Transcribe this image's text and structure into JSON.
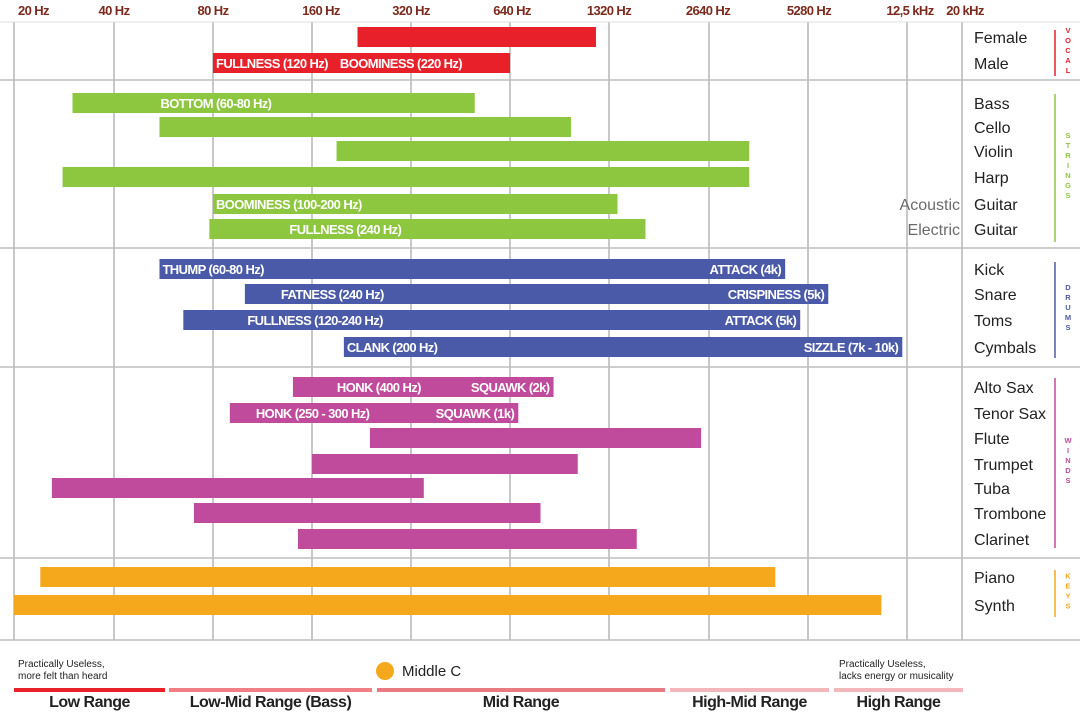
{
  "chart_data": {
    "type": "range-bar",
    "x_scale": "log",
    "x_ticks": [
      "20 Hz",
      "40 Hz",
      "80 Hz",
      "160 Hz",
      "320 Hz",
      "640 Hz",
      "1320 Hz",
      "2640 Hz",
      "5280 Hz",
      "12,5 kHz",
      "20 kHz"
    ],
    "x_tick_values_hz": [
      20,
      40,
      80,
      160,
      320,
      640,
      1320,
      2640,
      5280,
      12500,
      20000
    ],
    "groups": [
      {
        "name": "VOCAL",
        "color": "#e8202a",
        "instruments": [
          {
            "label": "Female",
            "low_hz": 220,
            "high_hz": 1200,
            "annotations": []
          },
          {
            "label": "Male",
            "low_hz": 80,
            "high_hz": 640,
            "annotations": [
              "FULLNESS (120 Hz)",
              "BOOMINESS (220 Hz)"
            ]
          }
        ]
      },
      {
        "name": "STRINGS",
        "color": "#8dc63f",
        "instruments": [
          {
            "label": "Bass",
            "low_hz": 30,
            "high_hz": 500,
            "annotations": [
              "BOTTOM (60-80 Hz)"
            ]
          },
          {
            "label": "Cello",
            "low_hz": 55,
            "high_hz": 1000,
            "annotations": []
          },
          {
            "label": "Violin",
            "low_hz": 190,
            "high_hz": 3500,
            "annotations": []
          },
          {
            "label": "Harp",
            "low_hz": 28,
            "high_hz": 3500,
            "annotations": []
          },
          {
            "label": "Guitar",
            "qualifier": "Acoustic",
            "low_hz": 80,
            "high_hz": 1400,
            "annotations": [
              "BOOMINESS (100-200 Hz)"
            ]
          },
          {
            "label": "Guitar",
            "qualifier": "Electric",
            "low_hz": 78,
            "high_hz": 1700,
            "annotations": [
              "FULLNESS (240 Hz)"
            ]
          }
        ]
      },
      {
        "name": "DRUMS",
        "color": "#4a5aa8",
        "instruments": [
          {
            "label": "Kick",
            "low_hz": 55,
            "high_hz": 4500,
            "annotations": [
              "THUMP (60-80 Hz)",
              "ATTACK (4k)"
            ]
          },
          {
            "label": "Snare",
            "low_hz": 100,
            "high_hz": 6300,
            "annotations": [
              "FATNESS (240 Hz)",
              "CRISPINESS (5k)"
            ]
          },
          {
            "label": "Toms",
            "low_hz": 65,
            "high_hz": 5000,
            "annotations": [
              "FULLNESS (120-240 Hz)",
              "ATTACK (5k)"
            ]
          },
          {
            "label": "Cymbals",
            "low_hz": 200,
            "high_hz": 12000,
            "annotations": [
              "CLANK (200 Hz)",
              "SIZZLE (7k - 10k)"
            ]
          }
        ]
      },
      {
        "name": "WINDS",
        "color": "#c04a9b",
        "instruments": [
          {
            "label": "Alto Sax",
            "low_hz": 140,
            "high_hz": 880,
            "annotations": [
              "HONK (400 Hz)",
              "SQUAWK (2k)"
            ]
          },
          {
            "label": "Tenor Sax",
            "low_hz": 90,
            "high_hz": 680,
            "annotations": [
              "HONK (250 - 300 Hz)",
              "SQUAWK (1k)"
            ]
          },
          {
            "label": "Flute",
            "low_hz": 240,
            "high_hz": 2500,
            "annotations": []
          },
          {
            "label": "Trumpet",
            "low_hz": 160,
            "high_hz": 1050,
            "annotations": []
          },
          {
            "label": "Tuba",
            "low_hz": 26,
            "high_hz": 350,
            "annotations": []
          },
          {
            "label": "Trombone",
            "low_hz": 70,
            "high_hz": 800,
            "annotations": []
          },
          {
            "label": "Clarinet",
            "low_hz": 145,
            "high_hz": 1600,
            "annotations": []
          }
        ]
      },
      {
        "name": "KEYS",
        "color": "#f6a81c",
        "instruments": [
          {
            "label": "Piano",
            "low_hz": 24,
            "high_hz": 4200,
            "annotations": []
          },
          {
            "label": "Synth",
            "low_hz": 20,
            "high_hz": 10000,
            "annotations": []
          }
        ]
      }
    ],
    "middle_c_label": "Middle C",
    "ranges": [
      {
        "label": "Low Range",
        "color": "#e8202a"
      },
      {
        "label": "Low-Mid Range (Bass)",
        "color": "#f07f86"
      },
      {
        "label": "Mid Range",
        "color": "#e87a82"
      },
      {
        "label": "High-Mid Range",
        "color": "#f3b6ba"
      },
      {
        "label": "High Range",
        "color": "#f3b6ba"
      }
    ],
    "notes": {
      "low": "Practically Useless,\nmore felt than heard",
      "high": "Practically Useless,\nlacks energy or musicality"
    },
    "grid": true
  }
}
